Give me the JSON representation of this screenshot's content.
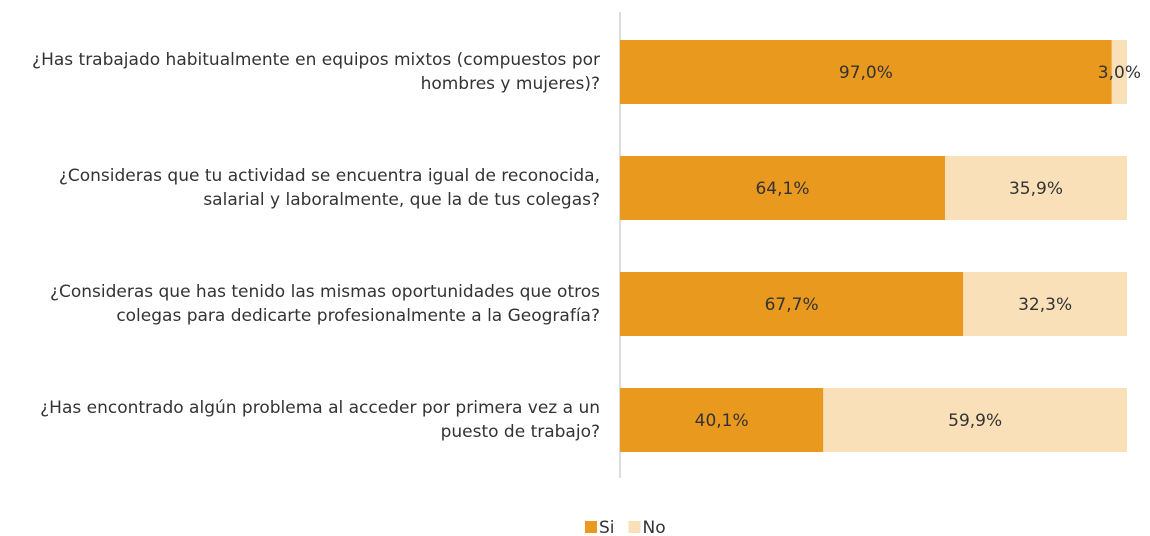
{
  "chart_data": {
    "type": "stacked-bar-horizontal",
    "categories": [
      "¿Has trabajado habitualmente en equipos mixtos (compuestos por hombres y mujeres)?",
      "¿Consideras que tu actividad se encuentra igual de reconocida, salarial y laboralmente, que la de tus colegas?",
      "¿Consideras que has tenido las mismas oportunidades que otros colegas para dedicarte profesionalmente a la Geografía?",
      "¿Has encontrado algún problema al acceder por primera vez a un puesto de trabajo?"
    ],
    "series": [
      {
        "name": "Si",
        "color": "#e8991e",
        "values": [
          97.0,
          64.1,
          67.7,
          40.1
        ],
        "value_labels": [
          "97,0%",
          "64,1%",
          "67,7%",
          "40,1%"
        ]
      },
      {
        "name": "No",
        "color": "#f9e0b8",
        "values": [
          3.0,
          35.9,
          32.3,
          59.9
        ],
        "value_labels": [
          "3,0%",
          "35,9%",
          "32,3%",
          "59,9%"
        ]
      }
    ],
    "xlim": [
      0,
      100
    ],
    "legend": "bottom"
  }
}
